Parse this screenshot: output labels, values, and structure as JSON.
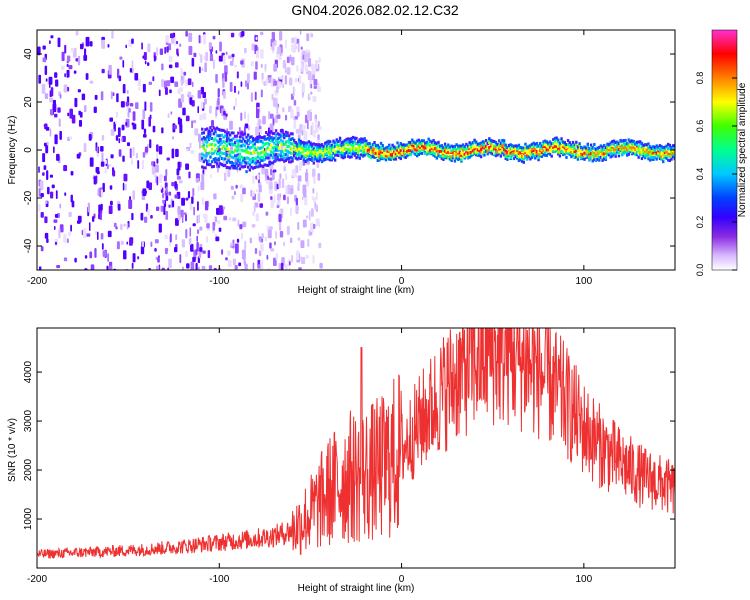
{
  "title": "GN04.2026.082.02.12.C32",
  "colors": {
    "snr_line": "#ee3030",
    "axis": "#000000",
    "background": "#ffffff"
  },
  "colormap": [
    "#ffffff",
    "#e0c8ff",
    "#8a2be2",
    "#3a00ff",
    "#0000ff",
    "#00c8ff",
    "#00ff80",
    "#80ff00",
    "#ffff00",
    "#ff8000",
    "#ff0000",
    "#ff40c0"
  ],
  "chart_data": [
    {
      "type": "heatmap",
      "title": "GN04.2026.082.02.12.C32",
      "xlabel": "Height of straight line (km)",
      "ylabel": "Frequency (Hz)",
      "xlim": [
        -200,
        150
      ],
      "ylim": [
        -50,
        50
      ],
      "xticks": [
        -200,
        -100,
        0,
        100
      ],
      "yticks": [
        -40,
        -20,
        0,
        20,
        40
      ],
      "colorbar": {
        "label": "Normalized spectral amplitude",
        "range": [
          0.0,
          1.0
        ],
        "ticks": [
          0.0,
          0.2,
          0.4,
          0.6,
          0.8
        ]
      },
      "description_series": {
        "noise_region_x": [
          -200,
          -60
        ],
        "signal_center_hz": 0,
        "signal_x_range": [
          -110,
          150
        ],
        "peak_amplitude_x_range": [
          -20,
          100
        ]
      }
    },
    {
      "type": "line",
      "xlabel": "Height of straight line (km)",
      "ylabel": "SNR (10 * v/v)",
      "xlim": [
        -200,
        150
      ],
      "ylim": [
        0,
        4900
      ],
      "xticks": [
        -200,
        -100,
        0,
        100
      ],
      "yticks": [
        1000,
        2000,
        3000,
        4000
      ],
      "series": [
        {
          "name": "SNR",
          "x": [
            -200,
            -180,
            -160,
            -140,
            -120,
            -100,
            -90,
            -80,
            -70,
            -60,
            -50,
            -40,
            -30,
            -20,
            -10,
            0,
            10,
            20,
            30,
            40,
            50,
            60,
            70,
            80,
            90,
            100,
            110,
            120,
            130,
            140,
            150
          ],
          "values": [
            280,
            310,
            340,
            380,
            440,
            520,
            560,
            600,
            650,
            760,
            1100,
            1550,
            1850,
            1900,
            2050,
            2400,
            2950,
            3450,
            3900,
            4250,
            4400,
            4350,
            4150,
            3850,
            3400,
            2850,
            2450,
            2150,
            1900,
            1750,
            1600
          ]
        }
      ]
    }
  ]
}
